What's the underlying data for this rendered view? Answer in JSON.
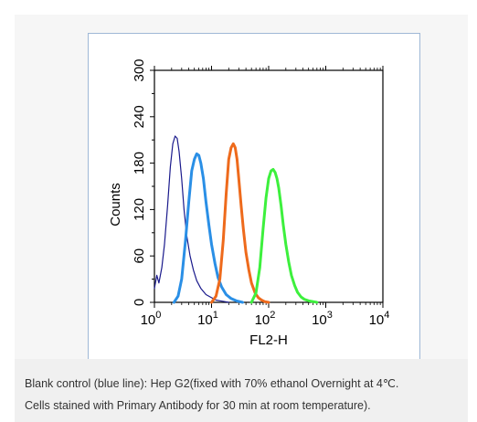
{
  "caption": {
    "line1": "Blank control (blue line): Hep G2(fixed with 70% ethanol Overnight at 4℃.",
    "line2": "Cells stained with Primary Antibody for 30 min at room temperature)."
  },
  "chart_data": {
    "type": "line",
    "xlabel": "FL2-H",
    "ylabel": "Counts",
    "x_scale": "log",
    "xlim": [
      1,
      10000
    ],
    "ylim": [
      0,
      300
    ],
    "x_ticks": [
      {
        "value": 1,
        "base": "10",
        "exp": "0"
      },
      {
        "value": 10,
        "base": "10",
        "exp": "1"
      },
      {
        "value": 100,
        "base": "10",
        "exp": "2"
      },
      {
        "value": 1000,
        "base": "10",
        "exp": "3"
      },
      {
        "value": 10000,
        "base": "10",
        "exp": "4"
      }
    ],
    "y_ticks": [
      "0",
      "60",
      "120",
      "180",
      "240",
      "300"
    ],
    "grid": false,
    "series": [
      {
        "color": "#1a1a8c",
        "width": 1.2,
        "x": [
          1,
          1.1,
          1.2,
          1.35,
          1.5,
          1.7,
          1.9,
          2.1,
          2.3,
          2.5,
          2.7,
          3.0,
          3.3,
          3.7,
          4.2,
          4.8,
          5.5,
          6.5,
          8,
          10,
          12,
          14,
          17,
          20
        ],
        "y": [
          18,
          35,
          25,
          45,
          75,
          125,
          175,
          205,
          215,
          212,
          195,
          160,
          120,
          85,
          60,
          42,
          28,
          18,
          10,
          6,
          3,
          2,
          1,
          0
        ]
      },
      {
        "color": "#2a8fe6",
        "width": 3,
        "x": [
          2.2,
          2.6,
          3.0,
          3.5,
          4.0,
          4.5,
          5.0,
          5.5,
          6.0,
          6.5,
          7.2,
          8.0,
          9.0,
          10,
          11.5,
          13,
          15,
          18,
          22,
          27,
          35
        ],
        "y": [
          0,
          8,
          30,
          80,
          130,
          170,
          185,
          192,
          190,
          180,
          160,
          130,
          100,
          75,
          50,
          32,
          20,
          10,
          5,
          2,
          0
        ]
      },
      {
        "color": "#ee6a1c",
        "width": 3,
        "x": [
          10,
          12,
          14,
          16,
          18,
          20,
          22,
          24,
          26,
          28,
          30,
          33,
          36,
          40,
          45,
          50,
          58,
          66,
          75,
          85,
          100
        ],
        "y": [
          0,
          8,
          30,
          80,
          140,
          185,
          200,
          205,
          200,
          185,
          160,
          125,
          95,
          65,
          42,
          25,
          12,
          6,
          3,
          1,
          0
        ]
      },
      {
        "color": "#3df03d",
        "width": 3,
        "x": [
          50,
          60,
          70,
          80,
          90,
          100,
          110,
          120,
          130,
          140,
          150,
          165,
          180,
          200,
          225,
          250,
          285,
          320,
          370,
          420,
          500,
          600,
          700
        ],
        "y": [
          0,
          12,
          45,
          95,
          135,
          160,
          170,
          172,
          168,
          160,
          148,
          125,
          100,
          75,
          52,
          35,
          22,
          13,
          7,
          4,
          2,
          1,
          0
        ]
      }
    ]
  }
}
